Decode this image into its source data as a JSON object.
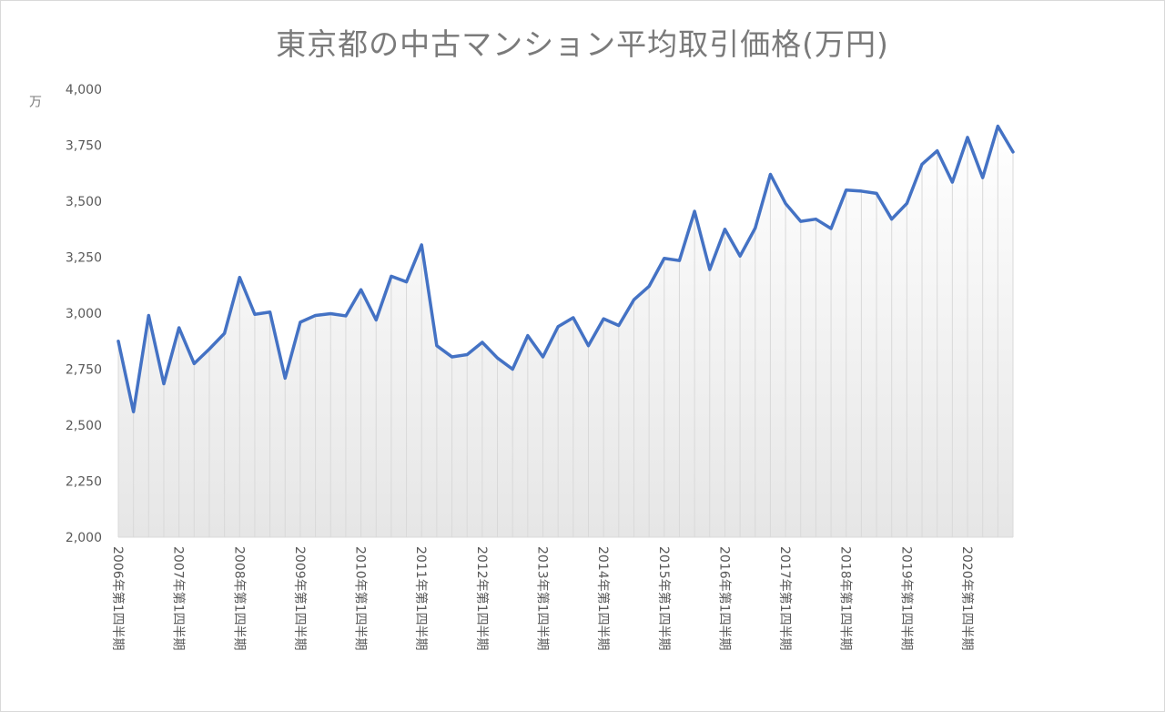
{
  "chart_data": {
    "type": "area",
    "title": "東京都の中古マンション平均取引価格(万円)",
    "ylabel": "万",
    "ylim": [
      2000,
      4000
    ],
    "yticks": [
      "2,000",
      "2,250",
      "2,500",
      "2,750",
      "3,000",
      "3,250",
      "3,500",
      "3,750",
      "4,000"
    ],
    "grid": false,
    "x_tick_labels": [
      "2006年第1四半期",
      "2007年第1四半期",
      "2008年第1四半期",
      "2009年第1四半期",
      "2010年第1四半期",
      "2011年第1四半期",
      "2012年第1四半期",
      "2013年第1四半期",
      "2014年第1四半期",
      "2015年第1四半期",
      "2016年第1四半期",
      "2017年第1四半期",
      "2018年第1四半期",
      "2019年第1四半期",
      "2020年第1四半期"
    ],
    "series": [
      {
        "color": "#4472c4",
        "values": [
          2875,
          2560,
          2990,
          2685,
          2935,
          2775,
          2840,
          2910,
          3160,
          2995,
          3005,
          2710,
          2960,
          2990,
          2998,
          2988,
          3105,
          2970,
          3165,
          3140,
          3305,
          2855,
          2805,
          2815,
          2870,
          2800,
          2750,
          2900,
          2805,
          2940,
          2980,
          2855,
          2975,
          2945,
          3060,
          3120,
          3245,
          3235,
          3455,
          3195,
          3375,
          3255,
          3380,
          3620,
          3490,
          3410,
          3420,
          3378,
          3550,
          3545,
          3535,
          3420,
          3490,
          3665,
          3725,
          3585,
          3785,
          3605,
          3835,
          3720
        ]
      }
    ]
  }
}
